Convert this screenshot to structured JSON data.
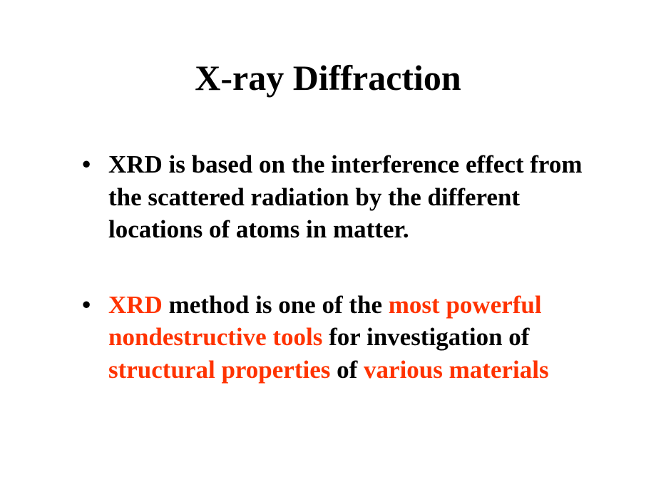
{
  "title": "X-ray Diffraction",
  "colors": {
    "text": "#000000",
    "highlight": "#ff3300",
    "background": "#ffffff"
  },
  "typography": {
    "font_family": "Times New Roman",
    "title_fontsize_pt": 40,
    "title_weight": "bold",
    "body_fontsize_pt": 28,
    "body_weight": "bold",
    "line_height": 1.3
  },
  "bullet1": {
    "text": "XRD is based on the interference effect from the scattered radiation by the different locations of atoms in matter."
  },
  "bullet2": {
    "part1_hl": "XRD",
    "part2": " method is one of the ",
    "part3_hl": "most powerful nondestructive tools",
    "part4": " for investigation of ",
    "part5_hl": "structural properties",
    "part6": " of ",
    "part7_hl": "various materials"
  }
}
